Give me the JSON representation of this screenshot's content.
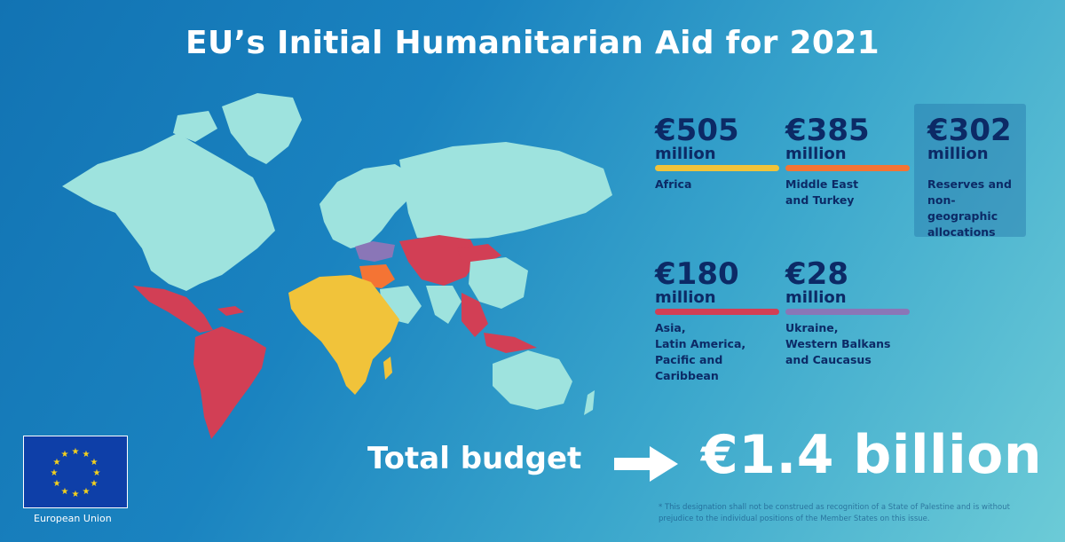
{
  "title": "EU’s Initial Humanitarian Aid for 2021",
  "colors": {
    "africa": "#f1c33a",
    "middle_east": "#f47434",
    "asia_latam": "#d23f55",
    "ukraine_balkans": "#8a76b7",
    "land": "#9ee3de",
    "text_dark": "#0c2a66"
  },
  "allocations": [
    {
      "amount": "€505",
      "unit": "million",
      "label": "Africa",
      "color": "#f1c33a"
    },
    {
      "amount": "€385",
      "unit": "million",
      "label": "Middle East\nand Turkey",
      "color": "#f47434"
    },
    {
      "amount": "€302",
      "unit": "million",
      "label": "Reserves and\nnon-geographic\nallocations",
      "color": ""
    },
    {
      "amount": "€180",
      "unit": "million",
      "label": "Asia,\nLatin America,\nPacific and\nCaribbean",
      "color": "#d23f55"
    },
    {
      "amount": "€28",
      "unit": "million",
      "label": "Ukraine,\nWestern Balkans\nand Caucasus",
      "color": "#8a76b7"
    }
  ],
  "total": {
    "label": "Total budget",
    "value": "€1.4 billion"
  },
  "eu_label": "European Union",
  "footnote": "* This designation shall not be construed as recognition of a State of Palestine and is without prejudice to the individual positions of the Member States on this issue."
}
